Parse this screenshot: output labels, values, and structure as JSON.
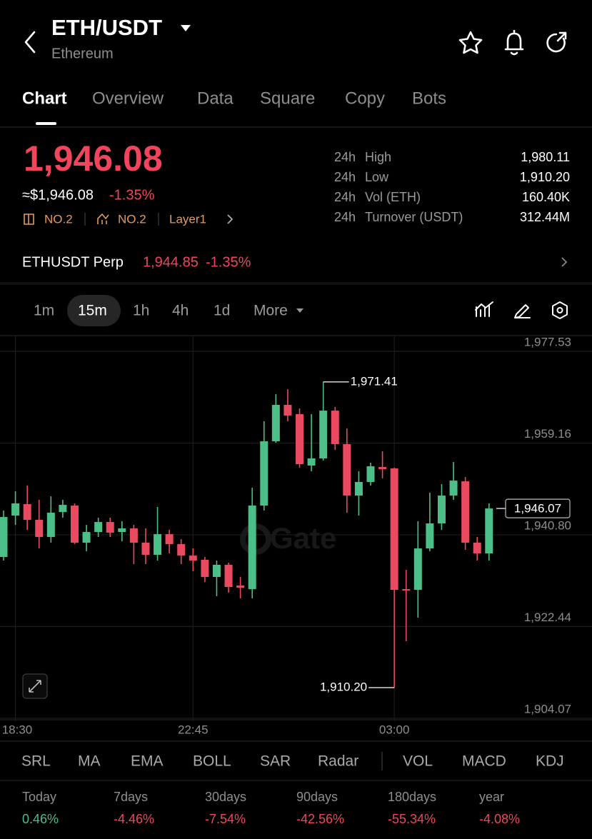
{
  "header": {
    "title": "ETH/USDT",
    "subtitle": "Ethereum"
  },
  "tabs": [
    "Chart",
    "Overview",
    "Data",
    "Square",
    "Copy",
    "Bots"
  ],
  "price": {
    "last": "1,946.08",
    "fiat": "≈$1,946.08",
    "change": "-1.35%",
    "tags": [
      "NO.2",
      "NO.2",
      "Layer1"
    ]
  },
  "stats": [
    {
      "period": "24h",
      "name": "High",
      "value": "1,980.11"
    },
    {
      "period": "24h",
      "name": "Low",
      "value": "1,910.20"
    },
    {
      "period": "24h",
      "name": "Vol (ETH)",
      "value": "160.40K"
    },
    {
      "period": "24h",
      "name": "Turnover (USDT)",
      "value": "312.44M"
    }
  ],
  "perp": {
    "name": "ETHUSDT Perp",
    "price": "1,944.85",
    "change": "-1.35%"
  },
  "intervals": [
    "1m",
    "15m",
    "1h",
    "4h",
    "1d",
    "More"
  ],
  "chart_data": {
    "type": "candlestick",
    "categories": [
      null,
      "18:30",
      null,
      null,
      null,
      null,
      null,
      null,
      null,
      null,
      null,
      null,
      null,
      null,
      null,
      null,
      "22:45",
      null,
      null,
      null,
      null,
      null,
      null,
      null,
      null,
      null,
      null,
      null,
      null,
      null,
      null,
      null,
      null,
      "03:00",
      null,
      null,
      null,
      null,
      null,
      null,
      null,
      null
    ],
    "open": [
      1936.36,
      1944.65,
      1946.94,
      1943.79,
      1940.36,
      1945.36,
      1946.65,
      1939.22,
      1941.36,
      1943.36,
      1941.36,
      1942.08,
      1939.22,
      1936.79,
      1940.93,
      1938.93,
      1936.64,
      1935.79,
      1932.36,
      1934.79,
      1930.64,
      1929.92,
      1946.65,
      1959.52,
      1966.81,
      1964.95,
      1954.66,
      1956.09,
      1965.66,
      1958.95,
      1948.65,
      1951.37,
      1954.37,
      1954.09,
      1929.92,
      1929.78,
      1938.07,
      1943.08,
      1948.65,
      1951.51,
      1939.22,
      1937.07
    ],
    "high": [
      1945.65,
      1949.51,
      1950.65,
      1947.79,
      1948.51,
      1947.79,
      1947.08,
      1942.79,
      1944.22,
      1944.22,
      1943.51,
      1942.79,
      1942.08,
      1946.37,
      1941.79,
      1939.93,
      1938.07,
      1936.36,
      1935.64,
      1935.21,
      1932.36,
      1950.22,
      1963.52,
      1968.95,
      1969.95,
      1966.09,
      1964.95,
      1971.41,
      1966.38,
      1962.09,
      1953.51,
      1955.23,
      1957.52,
      1954.23,
      1933.78,
      1943.51,
      1949.22,
      1950.94,
      1955.37,
      1952.37,
      1940.36,
      1947.08
    ],
    "low": [
      1935.64,
      1942.79,
      1941.79,
      1938.07,
      1939.22,
      1944.22,
      1938.93,
      1937.5,
      1940.36,
      1940.36,
      1939.5,
      1934.93,
      1934.93,
      1935.64,
      1937.07,
      1934.93,
      1933.5,
      1931.35,
      1928.5,
      1929.21,
      1928.07,
      1928.07,
      1945.65,
      1959.23,
      1963.52,
      1954.23,
      1953.51,
      1955.66,
      1957.8,
      1945.22,
      1944.65,
      1950.65,
      1952.08,
      1910.2,
      1919.49,
      1924.21,
      1937.5,
      1941.79,
      1947.79,
      1937.79,
      1935.64,
      1935.64
    ],
    "close": [
      1944.36,
      1947.08,
      1943.79,
      1940.36,
      1945.22,
      1946.79,
      1939.22,
      1941.36,
      1943.36,
      1941.22,
      1942.08,
      1939.22,
      1936.79,
      1940.93,
      1938.93,
      1936.64,
      1935.64,
      1932.36,
      1934.79,
      1930.35,
      1930.21,
      1946.65,
      1959.52,
      1966.81,
      1964.66,
      1954.94,
      1956.09,
      1965.66,
      1958.95,
      1948.65,
      1951.37,
      1954.51,
      1953.94,
      1929.78,
      1929.64,
      1938.07,
      1943.08,
      1948.65,
      1951.65,
      1939.22,
      1937.07,
      1946.07
    ],
    "up_color": "#4cbf88",
    "down_color": "#ea4a60",
    "ylim": [
      1903.48,
      1980.68
    ],
    "yticks": [
      {
        "value": 1977.53,
        "label": "1,977.53"
      },
      {
        "value": 1959.16,
        "label": "1,959.16"
      },
      {
        "value": 1940.8,
        "label": "1,940.80"
      },
      {
        "value": 1922.44,
        "label": "1,922.44"
      },
      {
        "value": 1904.07,
        "label": "1,904.07"
      }
    ],
    "grid": true,
    "annotations": [
      {
        "value": 1971.41,
        "label": "1,971.41"
      },
      {
        "value": 1910.2,
        "label": "1,910.20"
      }
    ],
    "last": {
      "value": 1946.07,
      "label": "1,946.07"
    },
    "watermark": "Gate"
  },
  "indicators": [
    "SRL",
    "MA",
    "EMA",
    "BOLL",
    "SAR",
    "Radar",
    "VOL",
    "MACD",
    "KDJ"
  ],
  "performance": [
    {
      "period": "Today",
      "value": "0.46%"
    },
    {
      "period": "7days",
      "value": "-4.46%"
    },
    {
      "period": "30days",
      "value": "-7.54%"
    },
    {
      "period": "90days",
      "value": "-42.56%"
    },
    {
      "period": "180days",
      "value": "-55.34%"
    },
    {
      "period": "year",
      "value": "-4.08%"
    }
  ]
}
